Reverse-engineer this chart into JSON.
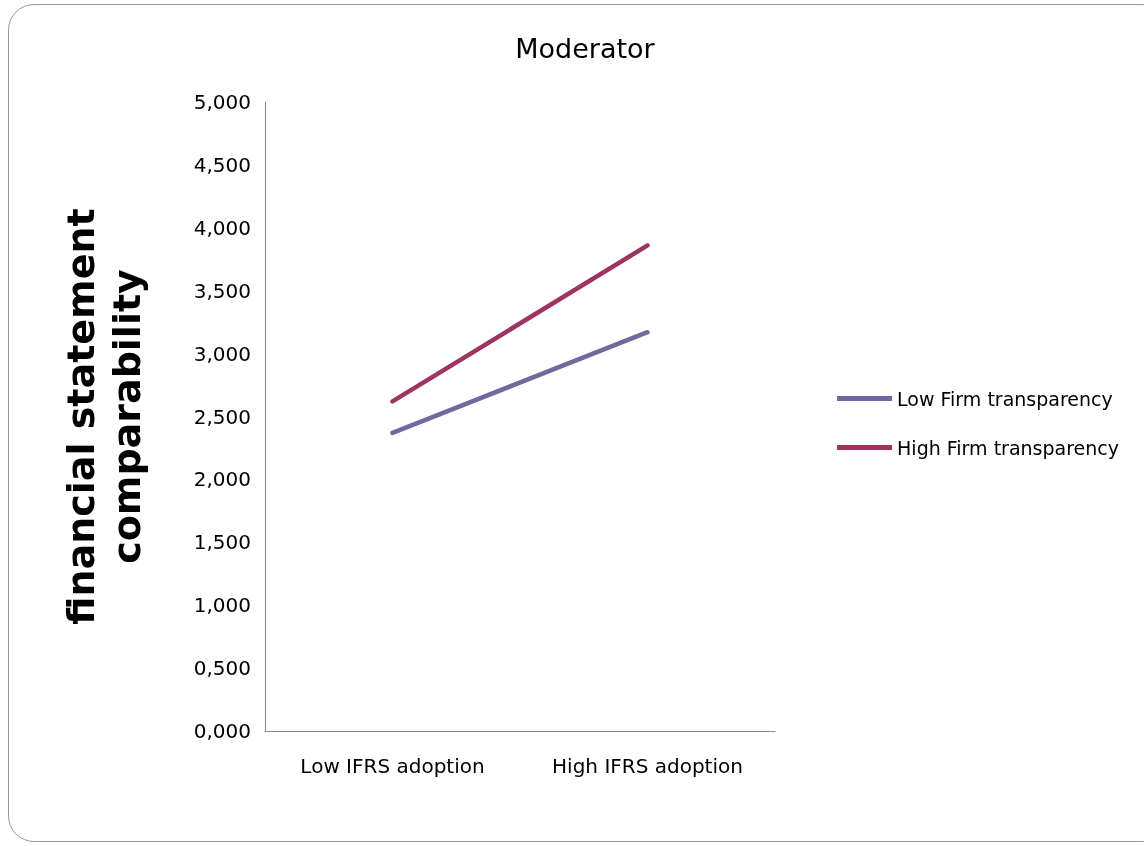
{
  "chart_data": {
    "type": "line",
    "title": "Moderator",
    "ylabel": "financial statement\ncomparability",
    "categories": [
      "Low IFRS adoption",
      "High IFRS adoption"
    ],
    "series": [
      {
        "name": "Low Firm transparency",
        "color": "#6b6b9e",
        "values": [
          2.37,
          3.17
        ]
      },
      {
        "name": "High Firm transparency",
        "color": "#9e3462",
        "values": [
          2.62,
          3.86
        ]
      }
    ],
    "ylim": [
      0,
      5
    ],
    "yticks": [
      {
        "value": 0,
        "label": "0,000"
      },
      {
        "value": 0.5,
        "label": "0,500"
      },
      {
        "value": 1,
        "label": "1,000"
      },
      {
        "value": 1.5,
        "label": "1,500"
      },
      {
        "value": 2,
        "label": "2,000"
      },
      {
        "value": 2.5,
        "label": "2,500"
      },
      {
        "value": 3,
        "label": "3,000"
      },
      {
        "value": 3.5,
        "label": "3,500"
      },
      {
        "value": 4,
        "label": "4,000"
      },
      {
        "value": 4.5,
        "label": "4,500"
      },
      {
        "value": 5,
        "label": "5,000"
      }
    ],
    "grid": false,
    "legend": "right",
    "marker": "none",
    "line_style": "solid"
  }
}
